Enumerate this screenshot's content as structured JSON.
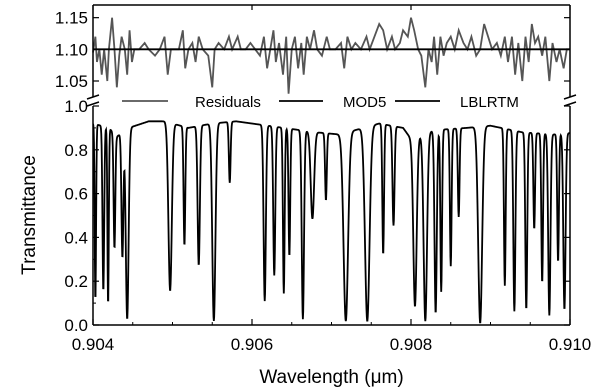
{
  "chart_data": {
    "type": "line",
    "ylabel": "Transmittance",
    "xlabel": "Wavelength (μm)",
    "x_range": [
      0.904,
      0.91
    ],
    "x_ticks": [
      "0.904",
      "0.906",
      "0.908",
      "0.910"
    ],
    "x_tick_values": [
      0.904,
      0.906,
      0.908,
      0.91
    ],
    "lower_panel": {
      "ylim": [
        0.0,
        1.0
      ],
      "y_ticks": [
        "0.0",
        "0.2",
        "0.4",
        "0.6",
        "0.8",
        "1.0"
      ],
      "y_tick_values": [
        0.0,
        0.2,
        0.4,
        0.6,
        0.8,
        1.0
      ]
    },
    "upper_panel": {
      "ylim": [
        1.02,
        1.17
      ],
      "y_ticks": [
        "1.05",
        "1.10",
        "1.15"
      ],
      "y_tick_values": [
        1.05,
        1.1,
        1.15
      ]
    },
    "axis_break": true,
    "legend": {
      "placement": "top, between panels",
      "entries": [
        "Residuals",
        "MOD5",
        "LBLRTM"
      ]
    },
    "series": [
      {
        "name": "MOD5",
        "panel": "lower",
        "color": "#000000",
        "baseline_points": [
          [
            0.904,
            0.92
          ],
          [
            0.9042,
            0.9
          ],
          [
            0.9043,
            0.86
          ],
          [
            0.90445,
            0.9
          ],
          [
            0.9047,
            0.93
          ],
          [
            0.9049,
            0.93
          ],
          [
            0.9052,
            0.9
          ],
          [
            0.9055,
            0.92
          ],
          [
            0.9058,
            0.93
          ],
          [
            0.906,
            0.92
          ],
          [
            0.9064,
            0.9
          ],
          [
            0.9068,
            0.88
          ],
          [
            0.9071,
            0.87
          ],
          [
            0.9074,
            0.9
          ],
          [
            0.9076,
            0.92
          ],
          [
            0.9079,
            0.9
          ],
          [
            0.908,
            0.85
          ],
          [
            0.9083,
            0.89
          ],
          [
            0.9087,
            0.9
          ],
          [
            0.909,
            0.91
          ],
          [
            0.9094,
            0.88
          ],
          [
            0.9098,
            0.87
          ],
          [
            0.9101,
            0.88
          ]
        ],
        "absorption_lines": [
          [
            0.90403,
            0.12,
            1.2e-05
          ],
          [
            0.90413,
            0.17,
            1.5e-05
          ],
          [
            0.90419,
            0.1,
            1.2e-05
          ],
          [
            0.90427,
            0.4,
            1.5e-05
          ],
          [
            0.90437,
            0.35,
            1.7e-05
          ],
          [
            0.90443,
            0.03,
            2.5e-05
          ],
          [
            0.90497,
            0.17,
            3e-05
          ],
          [
            0.90515,
            0.4,
            1.5e-05
          ],
          [
            0.90533,
            0.3,
            2e-05
          ],
          [
            0.90552,
            0.02,
            2.8e-05
          ],
          [
            0.90572,
            0.7,
            1.5e-05
          ],
          [
            0.90616,
            0.12,
            2e-05
          ],
          [
            0.90628,
            0.25,
            1.8e-05
          ],
          [
            0.9064,
            0.16,
            1.5e-05
          ],
          [
            0.90647,
            0.35,
            1.5e-05
          ],
          [
            0.90664,
            0.03,
            2e-05
          ],
          [
            0.90676,
            0.55,
            3e-05
          ],
          [
            0.90693,
            0.65,
            1.5e-05
          ],
          [
            0.90718,
            0.02,
            4e-05
          ],
          [
            0.90745,
            0.02,
            4e-05
          ],
          [
            0.90765,
            0.35,
            1.5e-05
          ],
          [
            0.90778,
            0.5,
            1.8e-05
          ],
          [
            0.90805,
            0.1,
            3e-05
          ],
          [
            0.90818,
            0.02,
            3e-05
          ],
          [
            0.90831,
            0.06,
            2e-05
          ],
          [
            0.90838,
            0.17,
            1.5e-05
          ],
          [
            0.9085,
            0.3,
            1.5e-05
          ],
          [
            0.9086,
            0.55,
            1.5e-05
          ],
          [
            0.90887,
            0.01,
            3.5e-05
          ],
          [
            0.90918,
            0.2,
            1.5e-05
          ],
          [
            0.9093,
            0.07,
            1.8e-05
          ],
          [
            0.90945,
            0.08,
            1.7e-05
          ],
          [
            0.90955,
            0.5,
            1.5e-05
          ],
          [
            0.90965,
            0.22,
            1.5e-05
          ],
          [
            0.90974,
            0.05,
            2e-05
          ],
          [
            0.90985,
            0.33,
            1.5e-05
          ],
          [
            0.90993,
            0.08,
            2e-05
          ]
        ]
      },
      {
        "name": "Residuals",
        "panel": "upper",
        "color": "#555555",
        "points": [
          [
            0.904,
            1.095
          ],
          [
            0.90403,
            1.12
          ],
          [
            0.90405,
            1.08
          ],
          [
            0.90408,
            1.1
          ],
          [
            0.90411,
            1.06
          ],
          [
            0.90414,
            1.1
          ],
          [
            0.90418,
            1.05
          ],
          [
            0.9042,
            1.1
          ],
          [
            0.90424,
            1.15
          ],
          [
            0.90427,
            1.1
          ],
          [
            0.9043,
            1.04
          ],
          [
            0.90433,
            1.09
          ],
          [
            0.90436,
            1.12
          ],
          [
            0.9044,
            1.1
          ],
          [
            0.90443,
            1.06
          ],
          [
            0.90446,
            1.13
          ],
          [
            0.90449,
            1.08
          ],
          [
            0.90452,
            1.1
          ],
          [
            0.90458,
            1.1
          ],
          [
            0.90465,
            1.11
          ],
          [
            0.9047,
            1.1
          ],
          [
            0.90478,
            1.09
          ],
          [
            0.90484,
            1.1
          ],
          [
            0.9049,
            1.12
          ],
          [
            0.90494,
            1.06
          ],
          [
            0.90498,
            1.1
          ],
          [
            0.90502,
            1.1
          ],
          [
            0.90508,
            1.1
          ],
          [
            0.90513,
            1.13
          ],
          [
            0.90516,
            1.07
          ],
          [
            0.9052,
            1.1
          ],
          [
            0.90525,
            1.11
          ],
          [
            0.90529,
            1.08
          ],
          [
            0.90533,
            1.12
          ],
          [
            0.90538,
            1.1
          ],
          [
            0.90545,
            1.09
          ],
          [
            0.9055,
            1.04
          ],
          [
            0.90553,
            1.1
          ],
          [
            0.90558,
            1.11
          ],
          [
            0.90565,
            1.1
          ],
          [
            0.90571,
            1.12
          ],
          [
            0.90575,
            1.1
          ],
          [
            0.90582,
            1.12
          ],
          [
            0.90586,
            1.1
          ],
          [
            0.90592,
            1.1
          ],
          [
            0.90598,
            1.11
          ],
          [
            0.90604,
            1.1
          ],
          [
            0.9061,
            1.09
          ],
          [
            0.90615,
            1.12
          ],
          [
            0.90619,
            1.07
          ],
          [
            0.90623,
            1.1
          ],
          [
            0.90627,
            1.13
          ],
          [
            0.9063,
            1.08
          ],
          [
            0.90634,
            1.11
          ],
          [
            0.90639,
            1.06
          ],
          [
            0.90643,
            1.12
          ],
          [
            0.90646,
            1.03
          ],
          [
            0.9065,
            1.1
          ],
          [
            0.90654,
            1.12
          ],
          [
            0.90658,
            1.07
          ],
          [
            0.90662,
            1.11
          ],
          [
            0.90665,
            1.06
          ],
          [
            0.90669,
            1.12
          ],
          [
            0.90673,
            1.1
          ],
          [
            0.90678,
            1.13
          ],
          [
            0.90682,
            1.1
          ],
          [
            0.90688,
            1.09
          ],
          [
            0.90694,
            1.12
          ],
          [
            0.90698,
            1.1
          ],
          [
            0.90705,
            1.1
          ],
          [
            0.90712,
            1.11
          ],
          [
            0.90716,
            1.07
          ],
          [
            0.9072,
            1.12
          ],
          [
            0.90725,
            1.1
          ],
          [
            0.9073,
            1.11
          ],
          [
            0.90737,
            1.1
          ],
          [
            0.90744,
            1.12
          ],
          [
            0.90748,
            1.1
          ],
          [
            0.90754,
            1.12
          ],
          [
            0.9076,
            1.14
          ],
          [
            0.90765,
            1.13
          ],
          [
            0.9077,
            1.1
          ],
          [
            0.90776,
            1.12
          ],
          [
            0.9078,
            1.1
          ],
          [
            0.90786,
            1.11
          ],
          [
            0.9079,
            1.13
          ],
          [
            0.90796,
            1.12
          ],
          [
            0.908,
            1.15
          ],
          [
            0.90804,
            1.13
          ],
          [
            0.90809,
            1.1
          ],
          [
            0.90813,
            1.09
          ],
          [
            0.90818,
            1.04
          ],
          [
            0.90822,
            1.1
          ],
          [
            0.90826,
            1.08
          ],
          [
            0.90829,
            1.12
          ],
          [
            0.90833,
            1.06
          ],
          [
            0.90837,
            1.12
          ],
          [
            0.90841,
            1.09
          ],
          [
            0.90845,
            1.11
          ],
          [
            0.9085,
            1.12
          ],
          [
            0.90855,
            1.1
          ],
          [
            0.9086,
            1.13
          ],
          [
            0.90866,
            1.11
          ],
          [
            0.90871,
            1.1
          ],
          [
            0.90876,
            1.12
          ],
          [
            0.90882,
            1.09
          ],
          [
            0.90887,
            1.1
          ],
          [
            0.90892,
            1.14
          ],
          [
            0.90897,
            1.12
          ],
          [
            0.90902,
            1.1
          ],
          [
            0.90908,
            1.11
          ],
          [
            0.90913,
            1.09
          ],
          [
            0.90918,
            1.12
          ],
          [
            0.90922,
            1.08
          ],
          [
            0.90927,
            1.12
          ],
          [
            0.90931,
            1.06
          ],
          [
            0.90935,
            1.11
          ],
          [
            0.9094,
            1.05
          ],
          [
            0.90944,
            1.12
          ],
          [
            0.90948,
            1.08
          ],
          [
            0.90952,
            1.14
          ],
          [
            0.90956,
            1.11
          ],
          [
            0.9096,
            1.12
          ],
          [
            0.90965,
            1.09
          ],
          [
            0.90969,
            1.12
          ],
          [
            0.90974,
            1.05
          ],
          [
            0.90978,
            1.11
          ],
          [
            0.90983,
            1.08
          ],
          [
            0.90987,
            1.1
          ],
          [
            0.90992,
            1.07
          ],
          [
            0.90996,
            1.1
          ],
          [
            0.91,
            1.1
          ]
        ]
      },
      {
        "name": "LBLRTM",
        "panel": "upper",
        "color": "#000000",
        "points": [
          [
            0.904,
            1.1
          ],
          [
            0.91,
            1.1
          ]
        ]
      }
    ]
  }
}
